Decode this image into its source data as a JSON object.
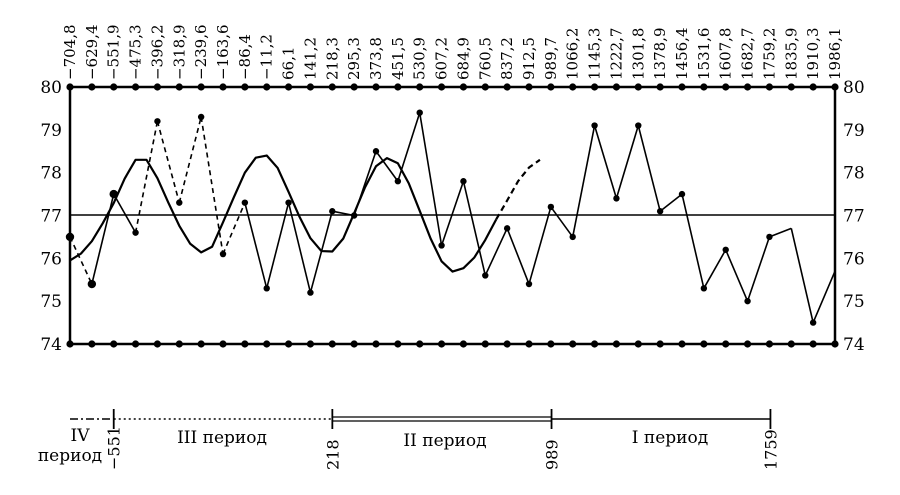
{
  "chart_data": {
    "type": "line",
    "top_labels": [
      "−704,8",
      "−629,4",
      "−551,9",
      "−475,3",
      "−396,2",
      "−318,9",
      "−239,6",
      "−163,6",
      "−86,4",
      "−11,2",
      "66,1",
      "141,2",
      "218,3",
      "295,3",
      "373,8",
      "451,5",
      "530,9",
      "607,2",
      "684,9",
      "760,5",
      "837,2",
      "912,5",
      "989,7",
      "1066,2",
      "1145,3",
      "1222,7",
      "1301,8",
      "1378,9",
      "1456,4",
      "1531,6",
      "1607,8",
      "1682,7",
      "1759,2",
      "1835,9",
      "1910,3",
      "1986,1"
    ],
    "y_ticks": [
      "74",
      "75",
      "76",
      "77",
      "78",
      "79",
      "80"
    ],
    "ylim": [
      74,
      80
    ],
    "reference_line": 77,
    "observed": [
      76.5,
      75.4,
      77.5,
      76.6,
      79.2,
      77.3,
      79.3,
      76.1,
      77.3,
      75.3,
      77.3,
      75.2,
      77.1,
      77.0,
      78.5,
      77.8,
      79.4,
      76.3,
      77.8,
      75.6,
      76.7,
      75.4,
      77.2,
      76.5,
      79.1,
      77.4,
      79.1,
      77.1,
      77.5,
      75.3,
      76.2,
      75.0,
      76.5,
      76.7,
      74.5,
      75.7
    ],
    "observed_dashed_segments": [
      0,
      3,
      4,
      5,
      6,
      7
    ],
    "no_marker_points": [
      33,
      35
    ],
    "trend_solid": [
      75.95,
      76.11,
      76.4,
      76.82,
      77.29,
      77.86,
      78.3,
      78.3,
      77.87,
      77.3,
      76.76,
      76.34,
      76.14,
      76.27,
      76.84,
      77.43,
      78.0,
      78.35,
      78.4,
      78.11,
      77.55,
      76.97,
      76.47,
      76.17,
      76.16,
      76.46,
      77.05,
      77.66,
      78.15,
      78.34,
      78.22,
      77.75,
      77.11,
      76.46,
      75.93,
      75.69,
      75.77,
      76.02,
      76.43,
      76.91
    ],
    "trend_dashed": [
      76.91,
      77.35,
      77.8,
      78.12,
      78.3
    ],
    "periods": [
      {
        "name": "IV",
        "name2": "период"
      },
      {
        "name": "III период"
      },
      {
        "name": "II период"
      },
      {
        "name": "I период"
      }
    ],
    "period_boundaries": [
      "−551",
      "218",
      "989",
      "1759"
    ],
    "boundary_values": [
      -551,
      218,
      989,
      1759
    ]
  }
}
